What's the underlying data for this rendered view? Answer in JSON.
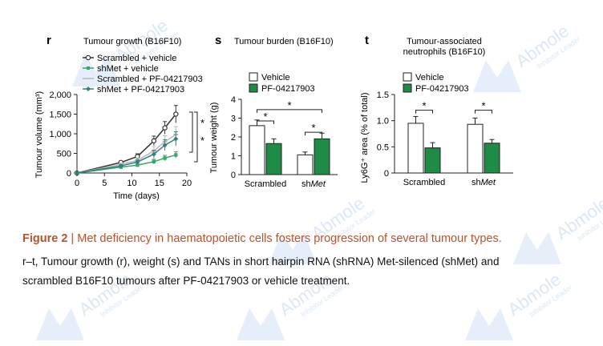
{
  "panels": {
    "r": {
      "letter": "r",
      "title": "Tumour growth (B16F10)",
      "xlabel": "Time (days)",
      "ylabel": "Tumour volume (mm³)",
      "legend": [
        "Scrambled + vehicle",
        "shMet + vehicle",
        "Scrambled + PF-04217903",
        "shMet + PF-04217903"
      ],
      "significance": [
        "*",
        "*"
      ]
    },
    "s": {
      "letter": "s",
      "title": "Tumour burden (B16F10)",
      "ylabel": "Tumour weight (g)",
      "legend": [
        "Vehicle",
        "PF-04217903"
      ],
      "groups": [
        "Scrambled",
        "shMet"
      ]
    },
    "t": {
      "letter": "t",
      "title_line1": "Tumour-associated",
      "title_line2": "neutrophils (B16F10)",
      "ylabel": "Ly6G⁺ area (% of total)",
      "legend": [
        "Vehicle",
        "PF-04217903"
      ],
      "groups": [
        "Scrambled",
        "shMet"
      ]
    }
  },
  "caption": {
    "figure_label": "Figure 2",
    "separator": " | ",
    "title": "Met deficiency in haematopoietic cells fosters progression of several tumour types.",
    "body_line1": "r–t, Tumour growth (r), weight (s) and TANs in short hairpin RNA (shRNA) Met-silenced (shMet) and",
    "body_line2": "scrambled B16F10 tumours after PF-04217903 or vehicle treatment."
  },
  "watermark": {
    "brand": "Abmole",
    "tagline": "Inhibitor Leader"
  },
  "colors": {
    "accent": "#b5532a",
    "green_bar": "#1e8b46",
    "green_line": "#3aa866",
    "grey_line": "#b7b7b7",
    "teal_line": "#2f7f80",
    "dark_line": "#333333",
    "watermark_blue": "#cfe0f4"
  },
  "chart_data": [
    {
      "type": "line",
      "title": "Tumour growth (B16F10)",
      "xlabel": "Time (days)",
      "ylabel": "Tumour volume (mm³)",
      "xlim": [
        0,
        20
      ],
      "ylim": [
        0,
        2000
      ],
      "xticks": [
        0,
        5,
        10,
        15,
        20
      ],
      "yticks": [
        0,
        500,
        1000,
        1500,
        2000
      ],
      "x": [
        0,
        8,
        11,
        14,
        16,
        18
      ],
      "series": [
        {
          "name": "Scrambled + vehicle",
          "values": [
            0,
            270,
            420,
            820,
            1150,
            1500
          ],
          "err": [
            0,
            30,
            70,
            120,
            160,
            220
          ]
        },
        {
          "name": "shMet + vehicle",
          "values": [
            0,
            150,
            200,
            290,
            380,
            460
          ],
          "err": [
            0,
            25,
            40,
            60,
            70,
            80
          ]
        },
        {
          "name": "Scrambled + PF-04217903",
          "values": [
            0,
            220,
            320,
            560,
            800,
            980
          ],
          "err": [
            0,
            30,
            60,
            110,
            150,
            200
          ]
        },
        {
          "name": "shMet + PF-04217903",
          "values": [
            0,
            180,
            280,
            480,
            710,
            870
          ],
          "err": [
            0,
            30,
            50,
            100,
            140,
            180
          ]
        }
      ]
    },
    {
      "type": "bar",
      "title": "Tumour burden (B16F10)",
      "ylabel": "Tumour weight (g)",
      "categories": [
        "Scrambled",
        "shMet"
      ],
      "ylim": [
        0,
        4
      ],
      "yticks": [
        0,
        1,
        2,
        3,
        4
      ],
      "series": [
        {
          "name": "Vehicle",
          "values": [
            2.6,
            1.05
          ],
          "err": [
            0.3,
            0.15
          ]
        },
        {
          "name": "PF-04217903",
          "values": [
            1.65,
            1.9
          ],
          "err": [
            0.25,
            0.3
          ]
        }
      ]
    },
    {
      "type": "bar",
      "title": "Tumour-associated neutrophils (B16F10)",
      "ylabel": "Ly6G⁺ area (% of total)",
      "categories": [
        "Scrambled",
        "shMet"
      ],
      "ylim": [
        0,
        1.5
      ],
      "yticks": [
        0,
        0.5,
        1.0,
        1.5
      ],
      "series": [
        {
          "name": "Vehicle",
          "values": [
            0.95,
            0.93
          ],
          "err": [
            0.13,
            0.12
          ]
        },
        {
          "name": "PF-04217903",
          "values": [
            0.48,
            0.57
          ],
          "err": [
            0.1,
            0.07
          ]
        }
      ]
    }
  ]
}
